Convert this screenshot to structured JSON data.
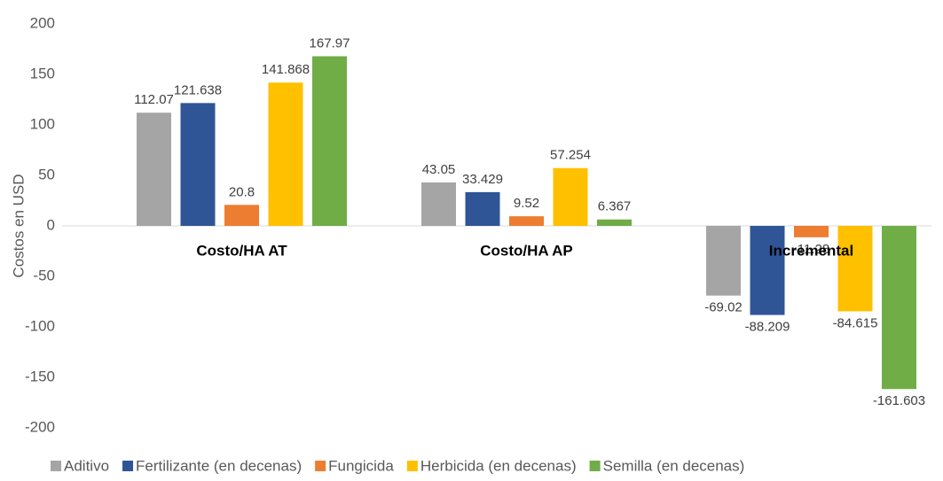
{
  "chart_data": {
    "type": "bar",
    "y_label": "Costos en USD",
    "categories": [
      "Costo/HA AT",
      "Costo/HA AP",
      "Incremental"
    ],
    "series": [
      {
        "name": "Aditivo",
        "color": "#a5a5a5",
        "values": [
          112.07,
          43.05,
          -69.02
        ]
      },
      {
        "name": "Fertilizante (en decenas)",
        "color": "#2f5597",
        "values": [
          121.638,
          33.429,
          -88.209
        ]
      },
      {
        "name": "Fungicida",
        "color": "#ed7d31",
        "values": [
          20.8,
          9.52,
          -11.28
        ]
      },
      {
        "name": "Herbicida (en decenas)",
        "color": "#ffc000",
        "values": [
          141.868,
          57.254,
          -84.615
        ]
      },
      {
        "name": "Semilla (en decenas)",
        "color": "#70ad47",
        "values": [
          167.97,
          6.367,
          -161.603
        ]
      }
    ],
    "ylim": [
      -200,
      200
    ],
    "yticks": [
      -200,
      -150,
      -100,
      -50,
      0,
      50,
      100,
      150,
      200
    ],
    "grid": false,
    "legend": "bottom"
  }
}
